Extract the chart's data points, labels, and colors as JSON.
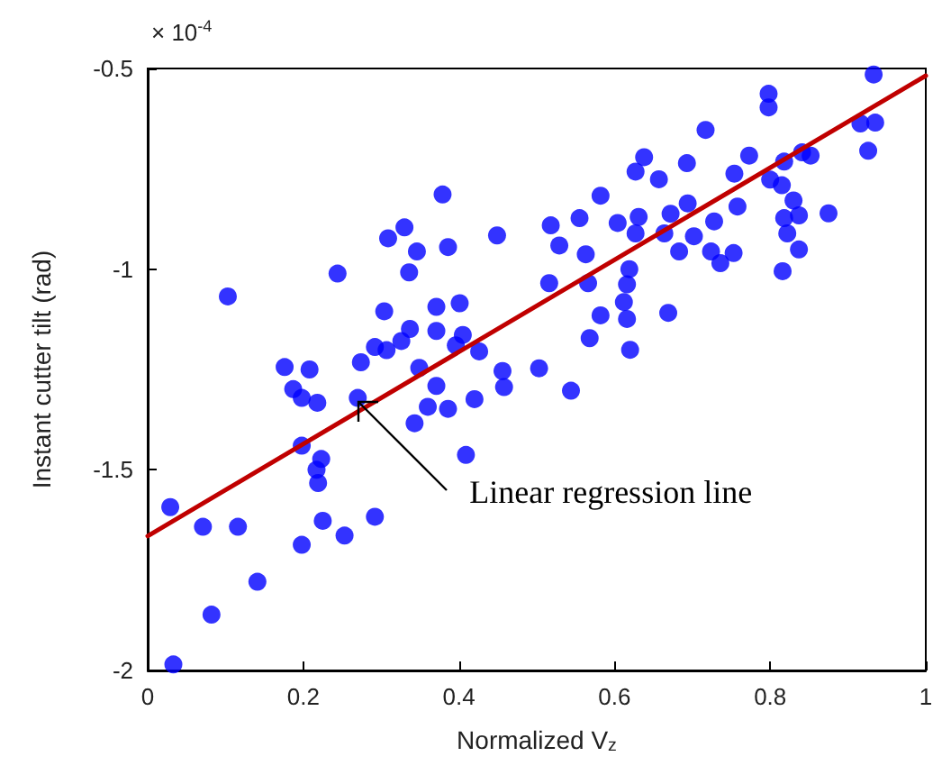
{
  "chart_data": {
    "type": "scatter",
    "xlabel": "Normalized V$_{z}$",
    "ylabel": "Instant cutter tilt (rad)",
    "xlim": [
      0,
      1
    ],
    "xticks": [
      0,
      0.2,
      0.4,
      0.6,
      0.8,
      1
    ],
    "ylim": [
      -2,
      -0.5
    ],
    "yticks": [
      -2,
      -1.5,
      -1,
      -0.5
    ],
    "grid": false,
    "marker": "circle",
    "annotations": [
      "× 10$^{-4}$",
      {
        "text": "Linear regression  line",
        "x": 0.27,
        "y": -1.33
      }
    ],
    "series": [
      {
        "color": "#0000ff",
        "x": [
          0.029,
          0.071,
          0.116,
          0.082,
          0.033,
          0.141,
          0.103,
          0.198,
          0.225,
          0.253,
          0.292,
          0.244,
          0.176,
          0.208,
          0.187,
          0.198,
          0.218,
          0.27,
          0.198,
          0.223,
          0.219,
          0.217,
          0.274,
          0.292,
          0.307,
          0.326,
          0.337,
          0.304,
          0.309,
          0.33,
          0.346,
          0.336,
          0.379,
          0.386,
          0.449,
          0.371,
          0.401,
          0.371,
          0.405,
          0.396,
          0.426,
          0.349,
          0.371,
          0.36,
          0.343,
          0.386,
          0.42,
          0.456,
          0.458,
          0.409,
          0.503,
          0.933,
          0.798,
          0.798,
          0.916,
          0.935,
          0.926,
          0.717,
          0.638,
          0.627,
          0.693,
          0.657,
          0.582,
          0.773,
          0.754,
          0.8,
          0.818,
          0.841,
          0.852,
          0.815,
          0.83,
          0.837,
          0.818,
          0.875,
          0.822,
          0.837,
          0.816,
          0.758,
          0.728,
          0.694,
          0.672,
          0.702,
          0.664,
          0.683,
          0.724,
          0.736,
          0.753,
          0.631,
          0.604,
          0.627,
          0.555,
          0.518,
          0.529,
          0.563,
          0.619,
          0.516,
          0.566,
          0.616,
          0.612,
          0.582,
          0.616,
          0.669,
          0.568,
          0.62,
          0.544
        ],
        "values": [
          -1.593,
          -1.642,
          -1.642,
          -1.861,
          -1.985,
          -1.779,
          -1.068,
          -1.687,
          -1.627,
          -1.664,
          -1.617,
          -1.011,
          -1.244,
          -1.25,
          -1.299,
          -1.321,
          -1.333,
          -1.321,
          -1.44,
          -1.473,
          -1.533,
          -1.5,
          -1.232,
          -1.194,
          -1.202,
          -1.179,
          -1.149,
          -1.105,
          -0.923,
          -0.896,
          -0.956,
          -1.008,
          -0.814,
          -0.945,
          -0.916,
          -1.094,
          -1.085,
          -1.154,
          -1.164,
          -1.19,
          -1.205,
          -1.246,
          -1.291,
          -1.343,
          -1.384,
          -1.348,
          -1.324,
          -1.254,
          -1.294,
          -1.463,
          -1.247,
          -0.515,
          -0.563,
          -0.597,
          -0.637,
          -0.635,
          -0.705,
          -0.653,
          -0.721,
          -0.757,
          -0.736,
          -0.776,
          -0.817,
          -0.717,
          -0.762,
          -0.777,
          -0.732,
          -0.709,
          -0.717,
          -0.791,
          -0.829,
          -0.866,
          -0.873,
          -0.861,
          -0.911,
          -0.951,
          -1.005,
          -0.844,
          -0.881,
          -0.836,
          -0.862,
          -0.918,
          -0.911,
          -0.956,
          -0.956,
          -0.985,
          -0.96,
          -0.87,
          -0.885,
          -0.911,
          -0.873,
          -0.891,
          -0.941,
          -0.963,
          -1.0,
          -1.035,
          -1.035,
          -1.038,
          -1.082,
          -1.115,
          -1.124,
          -1.109,
          -1.172,
          -1.201,
          -1.303
        ]
      },
      {
        "type": "line",
        "color": "#c00000",
        "marker": "none",
        "line_style": "solid",
        "x": [
          0,
          1
        ],
        "values": [
          -1.665,
          -0.518
        ]
      }
    ]
  }
}
